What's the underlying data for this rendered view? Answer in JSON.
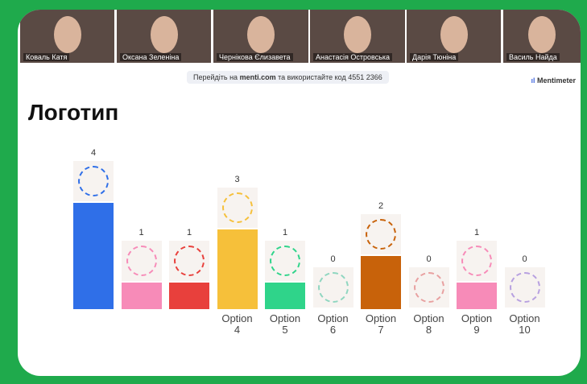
{
  "participants": [
    "Коваль Катя",
    "Оксана Зеленіна",
    "Чернікова Єлизавета",
    "Анастасія Островська",
    "Дарія Тюніна",
    "Василь Найда"
  ],
  "banner": {
    "before": "Перейдіть на",
    "site": "menti.com",
    "after": "та використайте код 4551 2366"
  },
  "brand": "Mentimeter",
  "chart_data": {
    "type": "bar",
    "title": "Логотип",
    "categories": [
      null,
      null,
      null,
      "Option\n4",
      "Option\n5",
      "Option\n6",
      "Option\n7",
      "Option\n8",
      "Option\n9",
      "Option\n10"
    ],
    "values": [
      4,
      1,
      1,
      3,
      1,
      0,
      2,
      0,
      1,
      0
    ],
    "colors": [
      "#2f6fe8",
      "#f78bb8",
      "#e8403c",
      "#f6c03a",
      "#2fd48a",
      "#8fd6c0",
      "#c8620a",
      "#e8a0a0",
      "#f78bb8",
      "#b7a0e0"
    ]
  }
}
